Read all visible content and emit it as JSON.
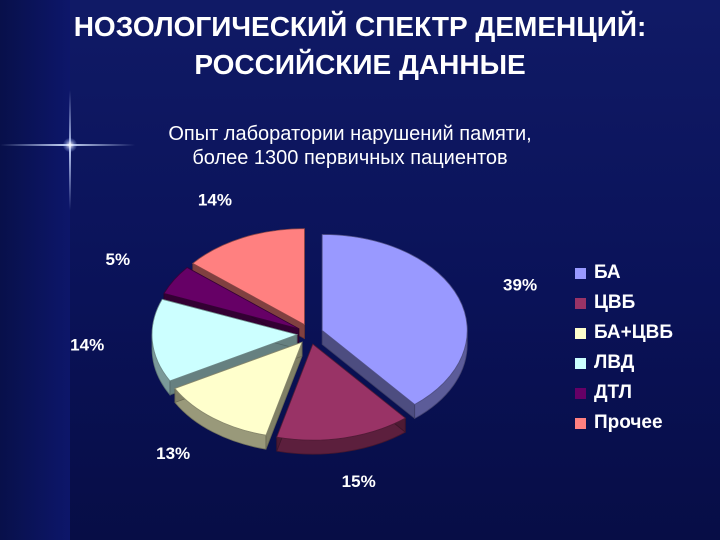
{
  "slide": {
    "title_line1": "НОЗОЛОГИЧЕСКИЙ СПЕКТР ДЕМЕНЦИЙ:",
    "title_line2": "РОССИЙСКИЕ ДАННЫЕ",
    "subtitle_line1": "Опыт лаборатории нарушений памяти,",
    "subtitle_line2": "более 1300 первичных пациентов"
  },
  "chart_data": {
    "type": "pie",
    "style": "3d-exploded",
    "title": "",
    "legend_position": "right",
    "categories": [
      "БА",
      "ЦВБ",
      "БА+ЦВБ",
      "ЛВД",
      "ДТЛ",
      "Прочее"
    ],
    "values": [
      39,
      15,
      13,
      14,
      5,
      14
    ],
    "data_labels": [
      "39%",
      "15%",
      "13%",
      "14%",
      "5%",
      "14%"
    ],
    "colors": [
      "#9999ff",
      "#993366",
      "#ffffcc",
      "#ccffff",
      "#660066",
      "#ff8080"
    ]
  }
}
